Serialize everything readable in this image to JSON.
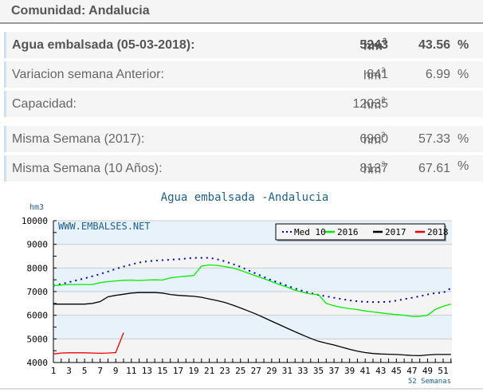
{
  "header": {
    "title": "Comunidad: Andalucia"
  },
  "stats": [
    {
      "label": "Agua embalsada (05-03-2018):",
      "value": "5243",
      "unit": "hm",
      "unit_sup": "3",
      "pct": "43.56",
      "pct_sign": "%"
    },
    {
      "label": "Variacion semana Anterior:",
      "value": "841",
      "unit": "hm",
      "unit_sup": "3",
      "pct": "6.99",
      "pct_sign": "%"
    },
    {
      "label": "Capacidad:",
      "value": "12035",
      "unit": "hm",
      "unit_sup": "3",
      "pct": "",
      "pct_sign": ""
    },
    {
      "label": "Misma Semana (2017):",
      "value": "6900",
      "unit": "hm",
      "unit_sup": "3",
      "pct": "57.33",
      "pct_sign": "%"
    },
    {
      "label": "Misma Semana (10 Años):",
      "value": "8137",
      "unit": "hm",
      "unit_sup": "3",
      "pct": "67.61",
      "pct_sign": "%"
    }
  ],
  "chart": {
    "title": "Agua embalsada -Andalucia",
    "y_unit": "hm3",
    "watermark": "WWW.EMBALSES.NET",
    "x_caption": "52 Semanas",
    "y_ticks": [
      "10000",
      "9000",
      "8000",
      "7000",
      "6000",
      "5000",
      "4000"
    ],
    "x_ticks": [
      "1",
      "3",
      "5",
      "7",
      "9",
      "11",
      "13",
      "15",
      "17",
      "19",
      "21",
      "23",
      "25",
      "27",
      "29",
      "31",
      "33",
      "35",
      "37",
      "39",
      "41",
      "43",
      "45",
      "47",
      "49",
      "51"
    ],
    "legend": [
      {
        "name": "Med 10",
        "color": "#0000cc",
        "style": "dotted"
      },
      {
        "name": "2016",
        "color": "#00ee00",
        "style": "solid"
      },
      {
        "name": "2017",
        "color": "#000000",
        "style": "solid"
      },
      {
        "name": "2018",
        "color": "#ee0000",
        "style": "solid"
      }
    ],
    "colors": {
      "title": "#1f5f8b",
      "band_blue": "#e8f2fa",
      "band_grey": "#f4f4f4",
      "grid": "#cccccc"
    }
  },
  "chart_data": {
    "type": "line",
    "title": "Agua embalsada -Andalucia",
    "xlabel": "52 Semanas",
    "ylabel": "hm3",
    "ylim": [
      4000,
      10000
    ],
    "xlim": [
      1,
      52
    ],
    "grid": true,
    "legend_position": "top-right",
    "x": [
      1,
      2,
      3,
      4,
      5,
      6,
      7,
      8,
      9,
      10,
      11,
      12,
      13,
      14,
      15,
      16,
      17,
      18,
      19,
      20,
      21,
      22,
      23,
      24,
      25,
      26,
      27,
      28,
      29,
      30,
      31,
      32,
      33,
      34,
      35,
      36,
      37,
      38,
      39,
      40,
      41,
      42,
      43,
      44,
      45,
      46,
      47,
      48,
      49,
      50,
      51,
      52
    ],
    "series": [
      {
        "name": "Med 10",
        "values": [
          7250,
          7320,
          7400,
          7480,
          7560,
          7650,
          7740,
          7850,
          7960,
          8060,
          8150,
          8230,
          8280,
          8310,
          8330,
          8350,
          8370,
          8400,
          8430,
          8430,
          8430,
          8370,
          8280,
          8170,
          8050,
          7900,
          7760,
          7620,
          7480,
          7370,
          7250,
          7130,
          7030,
          6940,
          6860,
          6800,
          6740,
          6680,
          6630,
          6590,
          6570,
          6560,
          6560,
          6570,
          6620,
          6680,
          6740,
          6800,
          6880,
          6940,
          6950,
          7150
        ]
      },
      {
        "name": "2016",
        "values": [
          7250,
          7280,
          7300,
          7300,
          7300,
          7300,
          7380,
          7420,
          7450,
          7480,
          7490,
          7470,
          7490,
          7500,
          7490,
          7580,
          7620,
          7650,
          7680,
          8080,
          8130,
          8110,
          8060,
          8000,
          7900,
          7780,
          7660,
          7550,
          7420,
          7300,
          7190,
          7060,
          6970,
          6900,
          6880,
          6500,
          6400,
          6330,
          6280,
          6240,
          6180,
          6140,
          6100,
          6060,
          6030,
          6000,
          5950,
          5950,
          6000,
          6250,
          6380,
          6470
        ]
      },
      {
        "name": "2017",
        "values": [
          6470,
          6470,
          6470,
          6470,
          6470,
          6500,
          6580,
          6780,
          6840,
          6890,
          6940,
          6960,
          6960,
          6960,
          6940,
          6880,
          6840,
          6820,
          6800,
          6760,
          6690,
          6620,
          6540,
          6430,
          6310,
          6180,
          6050,
          5900,
          5750,
          5600,
          5450,
          5300,
          5160,
          5020,
          4900,
          4820,
          4740,
          4650,
          4560,
          4480,
          4420,
          4380,
          4360,
          4350,
          4340,
          4320,
          4300,
          4290,
          4320,
          4340,
          4340,
          4340
        ]
      },
      {
        "name": "2018",
        "values": [
          4360,
          4400,
          4410,
          4410,
          4410,
          4400,
          4390,
          4400,
          4420,
          5260
        ]
      }
    ]
  }
}
